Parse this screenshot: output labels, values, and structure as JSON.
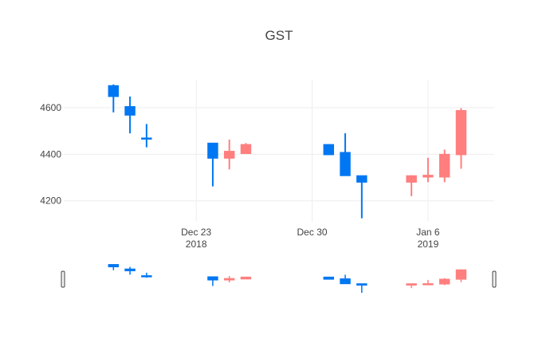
{
  "chart_data": {
    "type": "candlestick",
    "title": "GST",
    "xlabel": "",
    "ylabel": "",
    "x_ticks": [
      {
        "date": "2018-12-23",
        "line1": "Dec 23",
        "line2": "2018"
      },
      {
        "date": "2018-12-30",
        "line1": "Dec 30",
        "line2": ""
      },
      {
        "date": "2019-01-06",
        "line1": "Jan 6",
        "line2": "2019"
      }
    ],
    "y_ticks": [
      4200,
      4400,
      4600
    ],
    "xlim": [
      "2018-12-15",
      "2019-01-10"
    ],
    "ylim": [
      4110,
      4720
    ],
    "grid": true,
    "increasing_color": "#FF7F7F",
    "decreasing_color": "#0077F2",
    "rangeslider": true,
    "candles": [
      {
        "date": "2018-12-18",
        "open": 4695,
        "high": 4700,
        "low": 4580,
        "close": 4648
      },
      {
        "date": "2018-12-19",
        "open": 4605,
        "high": 4648,
        "low": 4490,
        "close": 4568
      },
      {
        "date": "2018-12-20",
        "open": 4470,
        "high": 4530,
        "low": 4430,
        "close": 4465
      },
      {
        "date": "2018-12-24",
        "open": 4448,
        "high": 4448,
        "low": 4262,
        "close": 4383
      },
      {
        "date": "2018-12-25",
        "open": 4383,
        "high": 4463,
        "low": 4335,
        "close": 4413
      },
      {
        "date": "2018-12-26",
        "open": 4403,
        "high": 4448,
        "low": 4403,
        "close": 4442
      },
      {
        "date": "2018-12-31",
        "open": 4442,
        "high": 4442,
        "low": 4398,
        "close": 4398
      },
      {
        "date": "2019-01-01",
        "open": 4408,
        "high": 4490,
        "low": 4308,
        "close": 4308
      },
      {
        "date": "2019-01-02",
        "open": 4308,
        "high": 4308,
        "low": 4125,
        "close": 4280
      },
      {
        "date": "2019-01-05",
        "open": 4280,
        "high": 4310,
        "low": 4220,
        "close": 4308
      },
      {
        "date": "2019-01-06",
        "open": 4302,
        "high": 4385,
        "low": 4280,
        "close": 4310
      },
      {
        "date": "2019-01-07",
        "open": 4302,
        "high": 4420,
        "low": 4280,
        "close": 4400
      },
      {
        "date": "2019-01-08",
        "open": 4398,
        "high": 4598,
        "low": 4338,
        "close": 4588
      }
    ]
  }
}
